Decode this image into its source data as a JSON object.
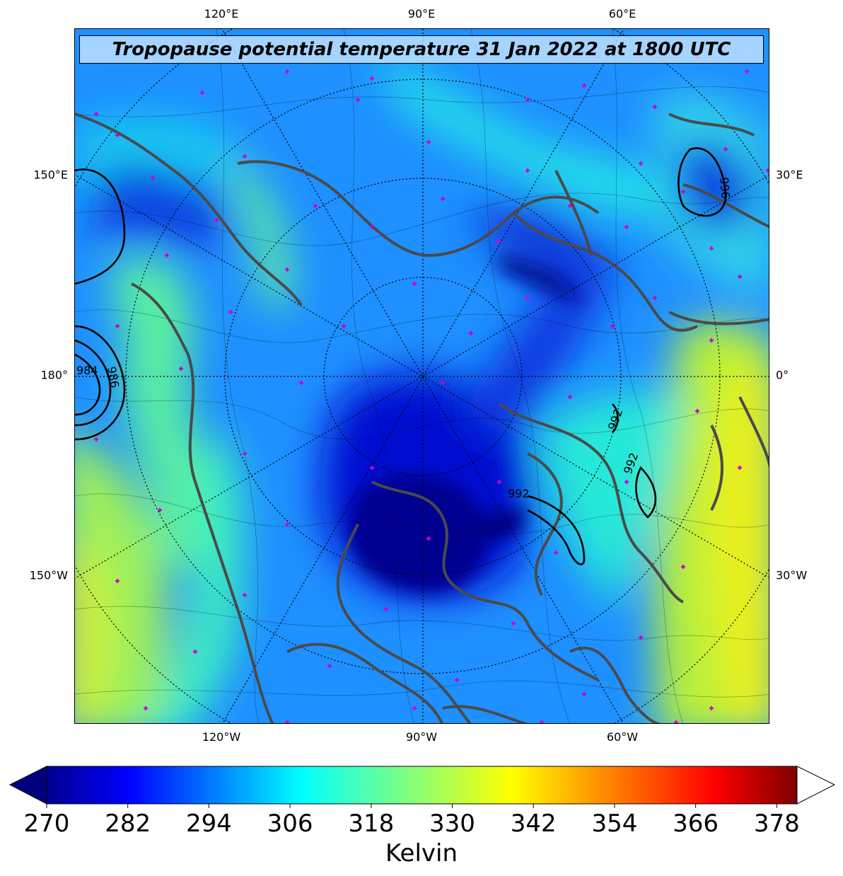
{
  "title": "Tropopause potential temperature 31 Jan 2022 at 1800 UTC",
  "lon_labels_top": [
    "120°E",
    "90°E",
    "60°E"
  ],
  "lon_labels_bottom": [
    "120°W",
    "90°W",
    "60°W"
  ],
  "lat_labels_left": [
    "150°E",
    "180°",
    "150°W"
  ],
  "lat_labels_right": [
    "30°E",
    "0°",
    "30°W"
  ],
  "contour_labels": [
    "984",
    "986",
    "992",
    "992",
    "996",
    "992"
  ],
  "colorbar": {
    "ticks": [
      "270",
      "282",
      "294",
      "306",
      "318",
      "330",
      "342",
      "354",
      "366",
      "378"
    ],
    "unit": "Kelvin",
    "min": 270,
    "max": 381,
    "extend": "both",
    "colormap": "jet",
    "under_color": "#00007f",
    "over_color": "#ffffff"
  },
  "colors": {
    "coastline": "#4a4a4a",
    "marker": "#cc00cc",
    "contour": "#000000"
  }
}
